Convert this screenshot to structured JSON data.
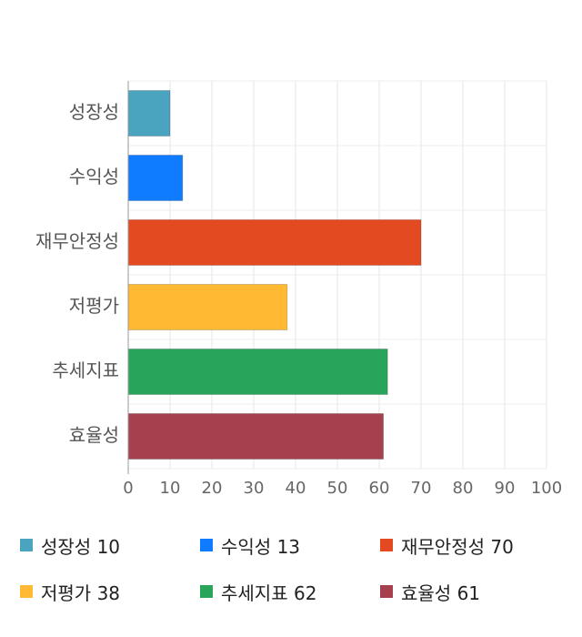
{
  "chart_data": {
    "type": "bar",
    "orientation": "horizontal",
    "categories": [
      "성장성",
      "수익성",
      "재무안정성",
      "저평가",
      "추세지표",
      "효율성"
    ],
    "values": [
      10,
      13,
      70,
      38,
      62,
      61
    ],
    "colors": [
      "#4aa3bf",
      "#0f7bff",
      "#e44a22",
      "#ffb932",
      "#28a55a",
      "#a6404f"
    ],
    "xlim": [
      0,
      100
    ],
    "xticks": [
      0,
      10,
      20,
      30,
      40,
      50,
      60,
      70,
      80,
      90,
      100
    ],
    "grid": true,
    "legend_position": "bottom"
  },
  "legend": [
    {
      "label": "성장성",
      "value": "10"
    },
    {
      "label": "수익성",
      "value": "13"
    },
    {
      "label": "재무안정성",
      "value": "70"
    },
    {
      "label": "저평가",
      "value": "38"
    },
    {
      "label": "추세지표",
      "value": "62"
    },
    {
      "label": "효율성",
      "value": "61"
    }
  ]
}
